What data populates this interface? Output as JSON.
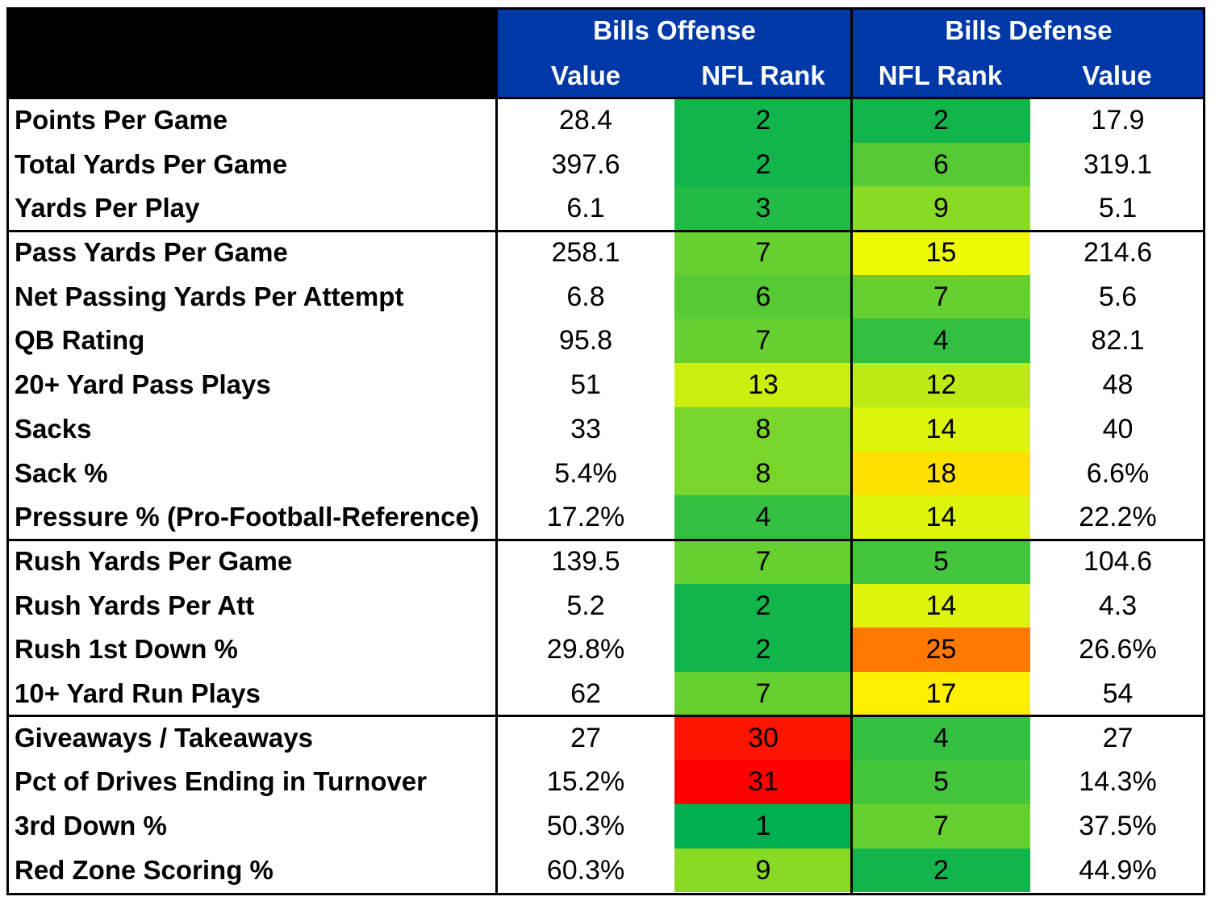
{
  "header": {
    "offense_title": "Bills Offense",
    "defense_title": "Bills Defense",
    "offense_cols": [
      "Value",
      "NFL Rank"
    ],
    "defense_cols": [
      "NFL Rank",
      "Value"
    ]
  },
  "chart_data": {
    "type": "table",
    "columns": [
      "Bills Offense Value",
      "Bills Offense NFL Rank",
      "Bills Defense NFL Rank",
      "Bills Defense Value"
    ],
    "groups": [
      3,
      7,
      4,
      4
    ],
    "rows": [
      {
        "label": "Points Per Game",
        "off_value": "28.4",
        "off_rank": "2",
        "def_rank": "2",
        "def_value": "17.9"
      },
      {
        "label": "Total Yards Per Game",
        "off_value": "397.6",
        "off_rank": "2",
        "def_rank": "6",
        "def_value": "319.1"
      },
      {
        "label": "Yards Per Play",
        "off_value": "6.1",
        "off_rank": "3",
        "def_rank": "9",
        "def_value": "5.1"
      },
      {
        "label": "Pass Yards Per Game",
        "off_value": "258.1",
        "off_rank": "7",
        "def_rank": "15",
        "def_value": "214.6"
      },
      {
        "label": "Net Passing Yards Per Attempt",
        "off_value": "6.8",
        "off_rank": "6",
        "def_rank": "7",
        "def_value": "5.6"
      },
      {
        "label": "QB Rating",
        "off_value": "95.8",
        "off_rank": "7",
        "def_rank": "4",
        "def_value": "82.1"
      },
      {
        "label": "20+ Yard Pass Plays",
        "off_value": "51",
        "off_rank": "13",
        "def_rank": "12",
        "def_value": "48"
      },
      {
        "label": "Sacks",
        "off_value": "33",
        "off_rank": "8",
        "def_rank": "14",
        "def_value": "40"
      },
      {
        "label": "Sack %",
        "off_value": "5.4%",
        "off_rank": "8",
        "def_rank": "18",
        "def_value": "6.6%"
      },
      {
        "label": "Pressure % (Pro-Football-Reference)",
        "off_value": "17.2%",
        "off_rank": "4",
        "def_rank": "14",
        "def_value": "22.2%"
      },
      {
        "label": "Rush Yards Per Game",
        "off_value": "139.5",
        "off_rank": "7",
        "def_rank": "5",
        "def_value": "104.6"
      },
      {
        "label": "Rush Yards Per Att",
        "off_value": "5.2",
        "off_rank": "2",
        "def_rank": "14",
        "def_value": "4.3"
      },
      {
        "label": "Rush 1st Down %",
        "off_value": "29.8%",
        "off_rank": "2",
        "def_rank": "25",
        "def_value": "26.6%"
      },
      {
        "label": "10+ Yard Run Plays",
        "off_value": "62",
        "off_rank": "7",
        "def_rank": "17",
        "def_value": "54"
      },
      {
        "label": "Giveaways / Takeaways",
        "off_value": "27",
        "off_rank": "30",
        "def_rank": "4",
        "def_value": "27"
      },
      {
        "label": "Pct of Drives Ending in Turnover",
        "off_value": "15.2%",
        "off_rank": "31",
        "def_rank": "5",
        "def_value": "14.3%"
      },
      {
        "label": "3rd Down %",
        "off_value": "50.3%",
        "off_rank": "1",
        "def_rank": "7",
        "def_value": "37.5%"
      },
      {
        "label": "Red Zone Scoring %",
        "off_value": "60.3%",
        "off_rank": "9",
        "def_rank": "2",
        "def_value": "44.9%"
      }
    ]
  }
}
